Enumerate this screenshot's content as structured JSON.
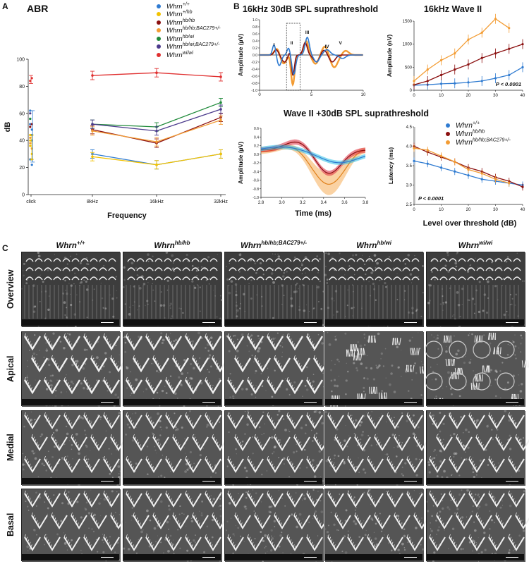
{
  "panel_labels": {
    "a": "A",
    "b": "B",
    "c": "C"
  },
  "legend": [
    {
      "base": "Whrn",
      "sup": "+/+",
      "color": "#2f7bd1"
    },
    {
      "base": "Whrn",
      "sup": "+/hb",
      "color": "#f2c200"
    },
    {
      "base": "Whrn",
      "sup": "hb/hb",
      "color": "#8b1010"
    },
    {
      "base": "Whrn",
      "sup": "hb/hb;BAC279+/-",
      "color": "#f39c33"
    },
    {
      "base": "Whrn",
      "sup": "hb/wi",
      "color": "#1f8a3a"
    },
    {
      "base": "Whrn",
      "sup": "hb/wi;BAC279+/-",
      "color": "#4b3a8c"
    },
    {
      "base": "Whrn",
      "sup": "wi/wi",
      "color": "#e03030"
    }
  ],
  "legend_b": [
    {
      "base": "Whrn",
      "sup": "+/+",
      "color": "#2f7bd1"
    },
    {
      "base": "Whrn",
      "sup": "hb/hb",
      "color": "#8b1010"
    },
    {
      "base": "Whrn",
      "sup": "hb/hb;BAC279+/-",
      "color": "#f39c33"
    }
  ],
  "chart_data": [
    {
      "id": "abr",
      "type": "line",
      "title": "ABR",
      "xlabel": "Frequency",
      "ylabel": "dB",
      "categories": [
        "click",
        "8kHz",
        "16kHz",
        "32kHz"
      ],
      "ylim": [
        0,
        100
      ],
      "yticks": [
        0,
        20,
        40,
        60,
        80,
        100
      ],
      "series": [
        {
          "name": "Whrn +/+",
          "color": "#2f7bd1",
          "values": [
            null,
            30,
            22,
            30
          ],
          "click_points": [
            52,
            48,
            56,
            40,
            26,
            22,
            62,
            44
          ]
        },
        {
          "name": "Whrn +/hb",
          "color": "#f2c200",
          "values": [
            null,
            28,
            22,
            30
          ],
          "click_points": [
            36,
            30,
            40,
            26,
            44
          ]
        },
        {
          "name": "Whrn hb/hb",
          "color": "#8b1010",
          "values": [
            null,
            48,
            38,
            57
          ],
          "click_points": [
            50,
            52
          ]
        },
        {
          "name": "Whrn hb/hb;BAC279+/-",
          "color": "#f39c33",
          "values": [
            null,
            47,
            39,
            55
          ],
          "click_points": [
            38,
            34,
            42
          ]
        },
        {
          "name": "Whrn hb/wi",
          "color": "#1f8a3a",
          "values": [
            null,
            52,
            50,
            68
          ],
          "click_points": [
            56
          ]
        },
        {
          "name": "Whrn hb/wi;BAC279+/-",
          "color": "#4b3a8c",
          "values": [
            null,
            52,
            47,
            63
          ],
          "click_points": [
            60
          ]
        },
        {
          "name": "Whrn wi/wi",
          "color": "#e03030",
          "values": [
            null,
            88,
            90,
            87
          ],
          "click_points": [
            84,
            86
          ]
        }
      ]
    },
    {
      "id": "wave16",
      "type": "line",
      "title": "16kHz 30dB SPL suprathreshold",
      "xlabel": "",
      "ylabel": "Amplitude (µV)",
      "xlim": [
        0,
        10
      ],
      "ylim": [
        -1.0,
        1.0
      ],
      "xticks": [
        0,
        5,
        10
      ],
      "yticks": [
        -1.0,
        -0.8,
        -0.6,
        -0.4,
        -0.2,
        0.0,
        0.2,
        0.4,
        0.6,
        0.8,
        1.0
      ],
      "peaks": [
        "I",
        "II",
        "III",
        "IV",
        "V"
      ]
    },
    {
      "id": "wave2amp",
      "type": "scatter",
      "title": "16kHz Wave II",
      "xlabel": "",
      "ylabel": "Amplitude (nV)",
      "xlim": [
        0,
        40
      ],
      "ylim": [
        0,
        1500
      ],
      "xticks": [
        0,
        10,
        20,
        30,
        40
      ],
      "yticks": [
        0,
        500,
        1000,
        1500
      ],
      "pvalue": "P < 0.0001",
      "series": [
        {
          "name": "Whrn +/+",
          "color": "#2f7bd1",
          "x": [
            0,
            5,
            10,
            15,
            20,
            25,
            30,
            35,
            40
          ],
          "y": [
            110,
            120,
            140,
            150,
            170,
            200,
            260,
            330,
            500
          ]
        },
        {
          "name": "Whrn hb/hb",
          "color": "#8b1010",
          "x": [
            0,
            5,
            10,
            15,
            20,
            25,
            30,
            35,
            40
          ],
          "y": [
            120,
            200,
            330,
            450,
            560,
            700,
            800,
            900,
            1000
          ]
        },
        {
          "name": "Whrn hb/hb;BAC279+/-",
          "color": "#f39c33",
          "x": [
            0,
            5,
            10,
            15,
            20,
            25,
            30,
            35
          ],
          "y": [
            200,
            450,
            650,
            800,
            1100,
            1250,
            1550,
            1350
          ]
        }
      ]
    },
    {
      "id": "wave2zoom",
      "type": "line",
      "title": "Wave II +30dB SPL suprathreshold",
      "xlabel": "Time (ms)",
      "ylabel": "Amplitude (µV)",
      "xlim": [
        2.8,
        3.8
      ],
      "ylim": [
        -1.0,
        0.6
      ],
      "xticks": [
        2.8,
        3.0,
        3.2,
        3.4,
        3.6,
        3.8
      ],
      "yticks": [
        -1.0,
        -0.8,
        -0.6,
        -0.4,
        -0.2,
        0.0,
        0.2,
        0.4,
        0.6
      ]
    },
    {
      "id": "latency",
      "type": "scatter",
      "title": "",
      "xlabel": "Level over threshold (dB)",
      "ylabel": "Latency (ms)",
      "xlim": [
        0,
        40
      ],
      "ylim": [
        2.5,
        4.5
      ],
      "xticks": [
        0,
        10,
        20,
        30,
        40
      ],
      "yticks": [
        2.5,
        3.0,
        3.5,
        4.0,
        4.5
      ],
      "pvalue": "P < 0.0001",
      "series": [
        {
          "name": "Whrn +/+",
          "color": "#2f7bd1",
          "x": [
            0,
            5,
            10,
            15,
            20,
            25,
            30,
            35,
            40
          ],
          "y": [
            3.62,
            3.55,
            3.45,
            3.35,
            3.25,
            3.15,
            3.1,
            3.05,
            3.0
          ]
        },
        {
          "name": "Whrn hb/hb",
          "color": "#8b1010",
          "x": [
            0,
            5,
            10,
            15,
            20,
            25,
            30,
            35,
            40
          ],
          "y": [
            4.0,
            3.85,
            3.72,
            3.6,
            3.45,
            3.35,
            3.2,
            3.1,
            2.95
          ]
        },
        {
          "name": "Whrn hb/hb;BAC279+/-",
          "color": "#f39c33",
          "x": [
            0,
            5,
            10,
            15,
            20,
            25,
            30,
            35
          ],
          "y": [
            3.95,
            3.9,
            3.75,
            3.6,
            3.4,
            3.3,
            3.15,
            3.05
          ]
        }
      ]
    }
  ],
  "sem": {
    "columns": [
      {
        "base": "Whrn",
        "sup": "+/+"
      },
      {
        "base": "Whrn",
        "sup": "hb/hb"
      },
      {
        "base": "Whrn",
        "sup": "hb/hb;BAC279+/-"
      },
      {
        "base": "Whrn",
        "sup": "hb/wi"
      },
      {
        "base": "Whrn",
        "sup": "wi/wi"
      }
    ],
    "rows": [
      "Overview",
      "Apical",
      "Medial",
      "Basal"
    ]
  }
}
